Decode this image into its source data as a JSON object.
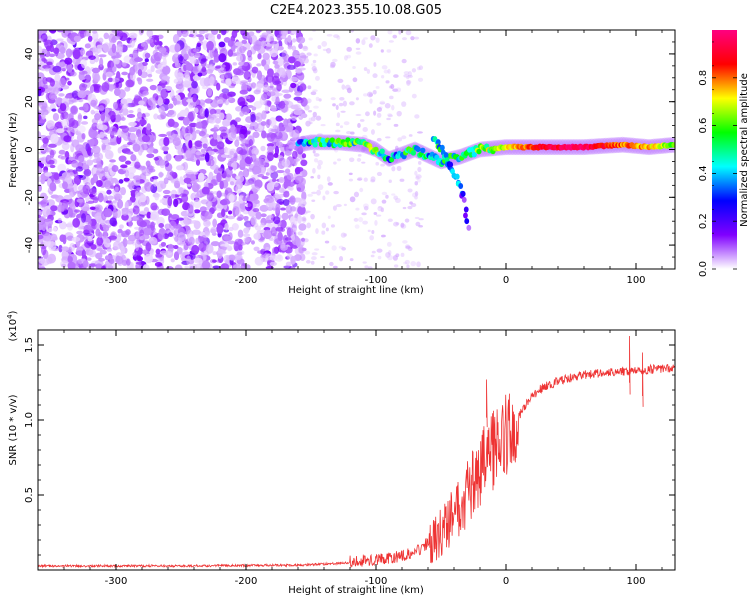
{
  "figure_title": "C2E4.2023.355.10.08.G05",
  "chart_data": [
    {
      "type": "heatmap",
      "title": "",
      "xlabel": "Height of straight line (km)",
      "ylabel": "Frequency (Hz)",
      "xlim": [
        -360,
        130
      ],
      "ylim": [
        -50,
        50
      ],
      "x_ticks": [
        -300,
        -200,
        -100,
        0,
        100
      ],
      "x_tick_labels": [
        "-300",
        "-200",
        "-100",
        "0",
        "100"
      ],
      "y_ticks": [
        -40,
        -20,
        0,
        20,
        40
      ],
      "y_tick_labels": [
        "-40",
        "-20",
        "0",
        "20",
        "40"
      ],
      "colorbar": {
        "label": "Normalized spectral amplitude",
        "range": [
          0,
          1
        ],
        "ticks": [
          0.0,
          0.2,
          0.4,
          0.6,
          0.8
        ],
        "tick_labels": [
          "0.0",
          "0.2",
          "0.4",
          "0.6",
          "0.8"
        ],
        "colors": [
          "#ffffff",
          "#8000ff",
          "#0000ff",
          "#00ffff",
          "#00ff00",
          "#ffff00",
          "#ff0000",
          "#ff0080"
        ]
      },
      "features": {
        "noise_region_x": [
          -360,
          -155
        ],
        "sparse_region_x": [
          -155,
          -125
        ],
        "signal_track": [
          {
            "x": -160,
            "f": 2,
            "amp": 0.3
          },
          {
            "x": -150,
            "f": 3,
            "amp": 0.45
          },
          {
            "x": -130,
            "f": 3,
            "amp": 0.5
          },
          {
            "x": -110,
            "f": 2,
            "amp": 0.5
          },
          {
            "x": -100,
            "f": 0,
            "amp": 0.55
          },
          {
            "x": -90,
            "f": -4,
            "amp": 0.4
          },
          {
            "x": -70,
            "f": 0,
            "amp": 0.5
          },
          {
            "x": -50,
            "f": -5,
            "amp": 0.45
          },
          {
            "x": -35,
            "f": -3,
            "amp": 0.45
          },
          {
            "x": -20,
            "f": 0,
            "amp": 0.6
          },
          {
            "x": 0,
            "f": 1,
            "amp": 0.7
          },
          {
            "x": 30,
            "f": 1,
            "amp": 0.9
          },
          {
            "x": 60,
            "f": 1,
            "amp": 0.95
          },
          {
            "x": 90,
            "f": 2,
            "amp": 0.8
          },
          {
            "x": 110,
            "f": 1,
            "amp": 0.75
          },
          {
            "x": 130,
            "f": 2,
            "amp": 0.6
          }
        ],
        "falling_branch": [
          {
            "x": -55,
            "f": 5,
            "amp": 0.5
          },
          {
            "x": -50,
            "f": 0,
            "amp": 0.45
          },
          {
            "x": -45,
            "f": -5,
            "amp": 0.4
          },
          {
            "x": -40,
            "f": -10,
            "amp": 0.35
          },
          {
            "x": -35,
            "f": -16,
            "amp": 0.3
          },
          {
            "x": -32,
            "f": -20,
            "amp": 0.25
          },
          {
            "x": -30,
            "f": -28,
            "amp": 0.15
          },
          {
            "x": -28,
            "f": -35,
            "amp": 0.1
          }
        ]
      }
    },
    {
      "type": "line",
      "title": "",
      "xlabel": "Height of straight line (km)",
      "ylabel": "SNR (10 * v/v)",
      "scale_label": "(x10^4)",
      "scale_label_base": "(x10",
      "scale_label_exp": "4",
      "scale_label_close": ")",
      "xlim": [
        -360,
        130
      ],
      "ylim": [
        0.0,
        1.6
      ],
      "x_ticks": [
        -300,
        -200,
        -100,
        0,
        100
      ],
      "x_tick_labels": [
        "-300",
        "-200",
        "-100",
        "0",
        "100"
      ],
      "y_ticks": [
        0.5,
        1.0,
        1.5
      ],
      "y_tick_labels": [
        "0.5",
        "1.0",
        "1.5"
      ],
      "series_color": "#ee3333",
      "envelope": [
        {
          "x": -360,
          "y": 0.02
        },
        {
          "x": -250,
          "y": 0.02
        },
        {
          "x": -160,
          "y": 0.025
        },
        {
          "x": -120,
          "y": 0.04
        },
        {
          "x": -90,
          "y": 0.06
        },
        {
          "x": -70,
          "y": 0.1
        },
        {
          "x": -55,
          "y": 0.2
        },
        {
          "x": -45,
          "y": 0.3
        },
        {
          "x": -35,
          "y": 0.42
        },
        {
          "x": -25,
          "y": 0.6
        },
        {
          "x": -15,
          "y": 0.75
        },
        {
          "x": -5,
          "y": 0.85
        },
        {
          "x": 5,
          "y": 0.95
        },
        {
          "x": 15,
          "y": 1.1
        },
        {
          "x": 25,
          "y": 1.2
        },
        {
          "x": 40,
          "y": 1.26
        },
        {
          "x": 60,
          "y": 1.3
        },
        {
          "x": 80,
          "y": 1.32
        },
        {
          "x": 100,
          "y": 1.33
        },
        {
          "x": 130,
          "y": 1.35
        }
      ],
      "peaks": [
        {
          "x": -15,
          "y": 1.27
        },
        {
          "x": 95,
          "y": 1.56
        },
        {
          "x": 105,
          "y": 1.45
        }
      ]
    }
  ]
}
